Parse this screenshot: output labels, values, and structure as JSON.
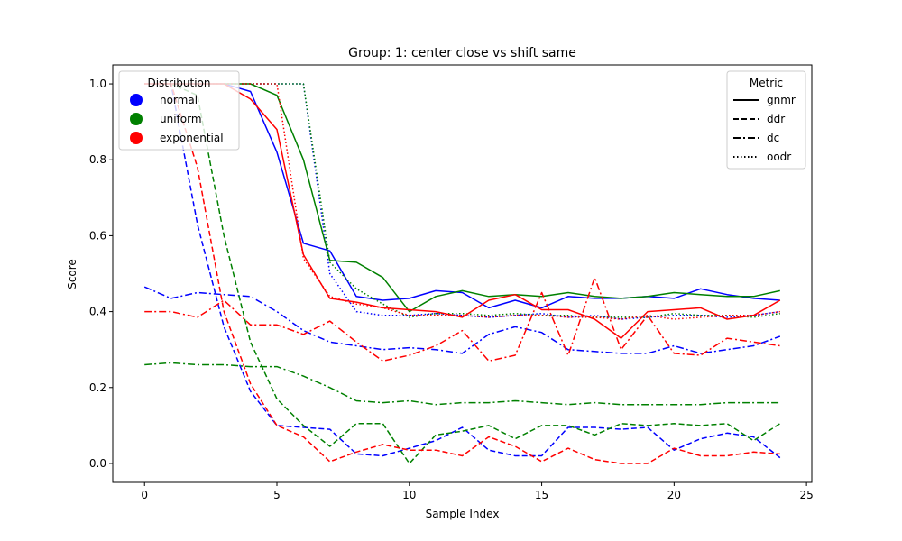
{
  "chart_data": {
    "type": "line",
    "title": "Group: 1: center close vs shift same",
    "xlabel": "Sample Index",
    "ylabel": "Score",
    "xlim": [
      -1.2,
      25.2
    ],
    "ylim": [
      -0.05,
      1.05
    ],
    "xticks": [
      0,
      5,
      10,
      15,
      20,
      25
    ],
    "yticks": [
      0.0,
      0.2,
      0.4,
      0.6,
      0.8,
      1.0
    ],
    "grid": false,
    "legend_distribution": {
      "title": "Distribution",
      "placement": "top-left",
      "entries": [
        {
          "label": "normal",
          "color": "#0000ff"
        },
        {
          "label": "uniform",
          "color": "#008000"
        },
        {
          "label": "exponential",
          "color": "#ff0000"
        }
      ]
    },
    "legend_metric": {
      "title": "Metric",
      "placement": "top-right",
      "entries": [
        {
          "label": "gnmr",
          "dash": "solid"
        },
        {
          "label": "ddr",
          "dash": "dashed"
        },
        {
          "label": "dc",
          "dash": "dashdot"
        },
        {
          "label": "oodr",
          "dash": "dotted"
        }
      ]
    },
    "x": [
      0,
      1,
      2,
      3,
      4,
      5,
      6,
      7,
      8,
      9,
      10,
      11,
      12,
      13,
      14,
      15,
      16,
      17,
      18,
      19,
      20,
      21,
      22,
      23,
      24
    ],
    "series": [
      {
        "distribution": "normal",
        "metric": "gnmr",
        "color": "#0000ff",
        "dash": "solid",
        "values": [
          1.0,
          1.0,
          1.0,
          1.0,
          0.98,
          0.82,
          0.58,
          0.56,
          0.44,
          0.43,
          0.435,
          0.455,
          0.45,
          0.41,
          0.43,
          0.41,
          0.44,
          0.435,
          0.435,
          0.44,
          0.435,
          0.46,
          0.445,
          0.435,
          0.43
        ]
      },
      {
        "distribution": "normal",
        "metric": "ddr",
        "color": "#0000ff",
        "dash": "dashed",
        "values": [
          1.0,
          1.0,
          0.63,
          0.36,
          0.19,
          0.1,
          0.095,
          0.09,
          0.025,
          0.02,
          0.04,
          0.06,
          0.095,
          0.035,
          0.02,
          0.02,
          0.095,
          0.095,
          0.09,
          0.095,
          0.035,
          0.065,
          0.08,
          0.07,
          0.015
        ]
      },
      {
        "distribution": "normal",
        "metric": "dc",
        "color": "#0000ff",
        "dash": "dashdot",
        "values": [
          0.465,
          0.435,
          0.45,
          0.445,
          0.44,
          0.4,
          0.35,
          0.32,
          0.31,
          0.3,
          0.305,
          0.3,
          0.29,
          0.34,
          0.36,
          0.345,
          0.3,
          0.295,
          0.29,
          0.29,
          0.31,
          0.29,
          0.3,
          0.31,
          0.335
        ]
      },
      {
        "distribution": "normal",
        "metric": "oodr",
        "color": "#0000ff",
        "dash": "dotted",
        "values": [
          1.0,
          1.0,
          1.0,
          1.0,
          1.0,
          1.0,
          1.0,
          0.5,
          0.4,
          0.39,
          0.39,
          0.395,
          0.39,
          0.385,
          0.39,
          0.395,
          0.385,
          0.39,
          0.38,
          0.385,
          0.39,
          0.39,
          0.385,
          0.39,
          0.4
        ]
      },
      {
        "distribution": "uniform",
        "metric": "gnmr",
        "color": "#008000",
        "dash": "solid",
        "values": [
          1.0,
          1.0,
          1.0,
          1.0,
          1.0,
          0.97,
          0.8,
          0.535,
          0.53,
          0.49,
          0.4,
          0.44,
          0.455,
          0.44,
          0.445,
          0.44,
          0.45,
          0.44,
          0.435,
          0.44,
          0.45,
          0.445,
          0.44,
          0.44,
          0.455
        ]
      },
      {
        "distribution": "uniform",
        "metric": "ddr",
        "color": "#008000",
        "dash": "dashed",
        "values": [
          1.0,
          1.0,
          0.97,
          0.6,
          0.32,
          0.17,
          0.1,
          0.045,
          0.105,
          0.105,
          0.0,
          0.075,
          0.085,
          0.1,
          0.065,
          0.1,
          0.1,
          0.075,
          0.105,
          0.1,
          0.105,
          0.1,
          0.105,
          0.06,
          0.105
        ]
      },
      {
        "distribution": "uniform",
        "metric": "dc",
        "color": "#008000",
        "dash": "dashdot",
        "values": [
          0.26,
          0.265,
          0.26,
          0.26,
          0.255,
          0.255,
          0.23,
          0.2,
          0.165,
          0.16,
          0.165,
          0.155,
          0.16,
          0.16,
          0.165,
          0.16,
          0.155,
          0.16,
          0.155,
          0.155,
          0.155,
          0.155,
          0.16,
          0.16,
          0.16
        ]
      },
      {
        "distribution": "uniform",
        "metric": "oodr",
        "color": "#008000",
        "dash": "dotted",
        "values": [
          1.0,
          1.0,
          1.0,
          1.0,
          1.0,
          1.0,
          1.0,
          0.53,
          0.46,
          0.42,
          0.385,
          0.395,
          0.395,
          0.39,
          0.395,
          0.39,
          0.39,
          0.385,
          0.385,
          0.385,
          0.395,
          0.39,
          0.39,
          0.385,
          0.395
        ]
      },
      {
        "distribution": "exponential",
        "metric": "gnmr",
        "color": "#ff0000",
        "dash": "solid",
        "values": [
          1.0,
          1.0,
          1.0,
          1.0,
          0.96,
          0.88,
          0.55,
          0.435,
          0.425,
          0.41,
          0.405,
          0.4,
          0.385,
          0.43,
          0.445,
          0.405,
          0.405,
          0.38,
          0.33,
          0.4,
          0.405,
          0.41,
          0.38,
          0.39,
          0.43
        ]
      },
      {
        "distribution": "exponential",
        "metric": "ddr",
        "color": "#ff0000",
        "dash": "dashed",
        "values": [
          1.0,
          1.0,
          0.78,
          0.4,
          0.21,
          0.1,
          0.07,
          0.005,
          0.03,
          0.05,
          0.035,
          0.035,
          0.02,
          0.07,
          0.045,
          0.005,
          0.04,
          0.01,
          0.0,
          0.0,
          0.04,
          0.02,
          0.02,
          0.03,
          0.025
        ]
      },
      {
        "distribution": "exponential",
        "metric": "dc",
        "color": "#ff0000",
        "dash": "dashdot",
        "values": [
          0.4,
          0.4,
          0.385,
          0.43,
          0.365,
          0.365,
          0.34,
          0.375,
          0.32,
          0.27,
          0.285,
          0.31,
          0.35,
          0.27,
          0.285,
          0.45,
          0.285,
          0.49,
          0.3,
          0.39,
          0.29,
          0.285,
          0.33,
          0.32,
          0.31
        ]
      },
      {
        "distribution": "exponential",
        "metric": "oodr",
        "color": "#ff0000",
        "dash": "dotted",
        "values": [
          1.0,
          1.0,
          1.0,
          1.0,
          1.0,
          1.0,
          0.54,
          0.44,
          0.42,
          0.41,
          0.39,
          0.39,
          0.39,
          0.385,
          0.39,
          0.39,
          0.385,
          0.385,
          0.38,
          0.39,
          0.38,
          0.385,
          0.39,
          0.39,
          0.4
        ]
      }
    ]
  }
}
